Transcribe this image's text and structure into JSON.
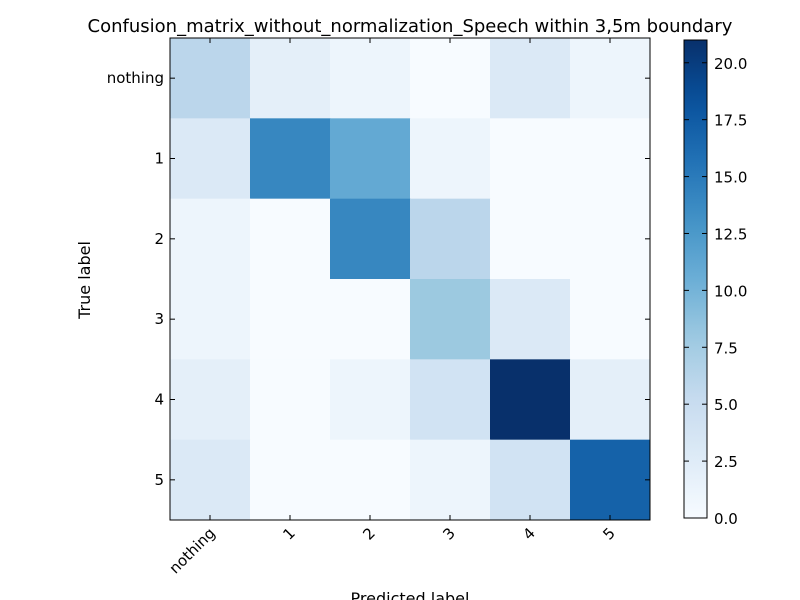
{
  "chart_data": {
    "type": "heatmap",
    "title": "Confusion_matrix_without_normalization_Speech within 3,5m boundary",
    "xlabel": "Predicted label",
    "ylabel": "True label",
    "x_categories": [
      "nothing",
      "1",
      "2",
      "3",
      "4",
      "5"
    ],
    "y_categories": [
      "nothing",
      "1",
      "2",
      "3",
      "4",
      "5"
    ],
    "values": [
      [
        6,
        2,
        1,
        0,
        3,
        1
      ],
      [
        3,
        14,
        11,
        1,
        0,
        0
      ],
      [
        1,
        0,
        14,
        6,
        0,
        0
      ],
      [
        1,
        0,
        0,
        8,
        3,
        0
      ],
      [
        2,
        0,
        1,
        4,
        21,
        2
      ],
      [
        3,
        0,
        0,
        1,
        4,
        17
      ]
    ],
    "colormap": "Blues",
    "vmin": 0,
    "vmax": 21,
    "colorbar_ticks": [
      "0.0",
      "2.5",
      "5.0",
      "7.5",
      "10.0",
      "12.5",
      "15.0",
      "17.5",
      "20.0"
    ],
    "colorbar_tick_values": [
      0,
      2.5,
      5,
      7.5,
      10,
      12.5,
      15,
      17.5,
      20
    ],
    "grid": false
  }
}
